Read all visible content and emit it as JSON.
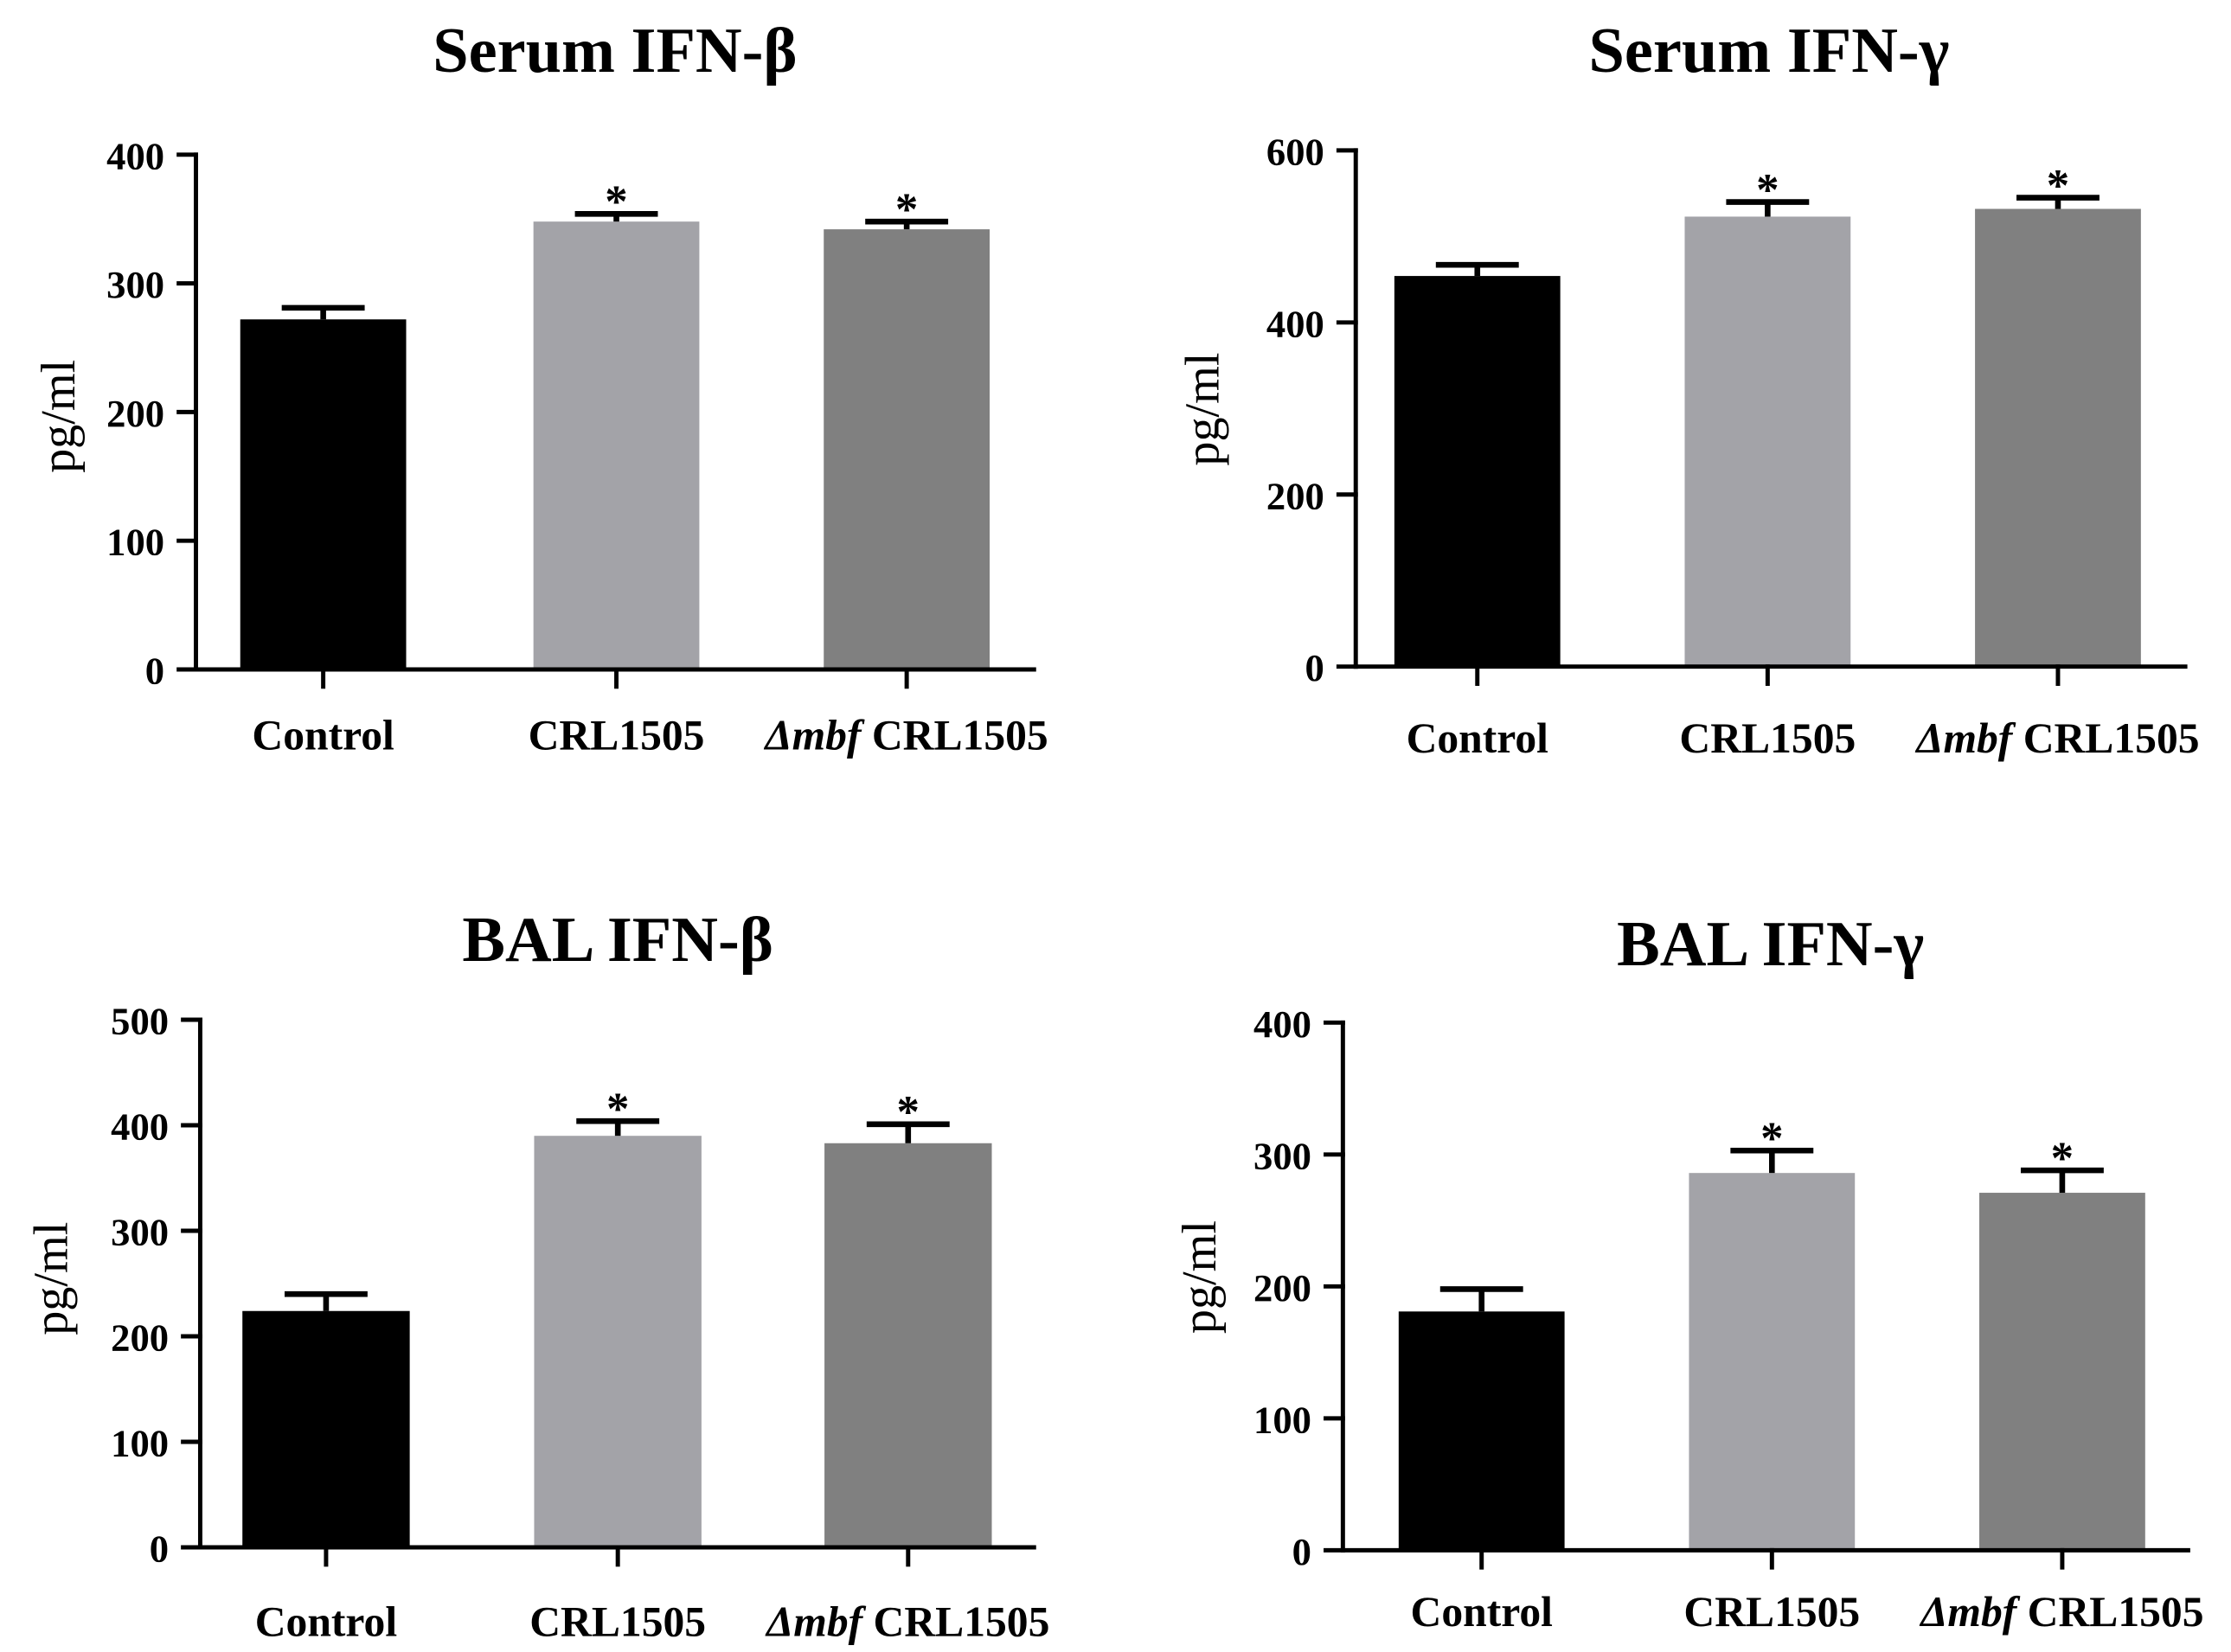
{
  "chart_data": [
    {
      "type": "bar",
      "title": "Serum IFN-β",
      "xlabel": "",
      "ylabel": "pg/ml",
      "ylim": [
        0,
        400
      ],
      "yticks": [
        0,
        100,
        200,
        300,
        400
      ],
      "categories": [
        "Control",
        "CRL1505",
        "Δmbf CRL1505"
      ],
      "values": [
        272,
        348,
        342
      ],
      "errors": [
        9,
        6,
        6
      ],
      "significance": [
        "",
        "*",
        "*"
      ],
      "bar_colors": [
        "#000000",
        "#a3a3a8",
        "#808080"
      ]
    },
    {
      "type": "bar",
      "title": "Serum IFN-γ",
      "xlabel": "",
      "ylabel": "pg/ml",
      "ylim": [
        0,
        600
      ],
      "yticks": [
        0,
        200,
        400,
        600
      ],
      "categories": [
        "Control",
        "CRL1505",
        "Δmbf CRL1505"
      ],
      "values": [
        454,
        523,
        532
      ],
      "errors": [
        13,
        17,
        13
      ],
      "significance": [
        "",
        "*",
        "*"
      ],
      "bar_colors": [
        "#000000",
        "#a3a3a8",
        "#808080"
      ]
    },
    {
      "type": "bar",
      "title": "BAL IFN-β",
      "xlabel": "",
      "ylabel": "pg/ml",
      "ylim": [
        0,
        500
      ],
      "yticks": [
        0,
        100,
        200,
        300,
        400,
        500
      ],
      "categories": [
        "Control",
        "CRL1505",
        "Δmbf CRL1505"
      ],
      "values": [
        224,
        390,
        383
      ],
      "errors": [
        16,
        14,
        18
      ],
      "significance": [
        "",
        "*",
        "*"
      ],
      "bar_colors": [
        "#000000",
        "#a3a3a8",
        "#808080"
      ]
    },
    {
      "type": "bar",
      "title": "BAL IFN-γ",
      "xlabel": "",
      "ylabel": "pg/ml",
      "ylim": [
        0,
        400
      ],
      "yticks": [
        0,
        100,
        200,
        300,
        400
      ],
      "categories": [
        "Control",
        "CRL1505",
        "Δmbf CRL1505"
      ],
      "values": [
        181,
        286,
        271
      ],
      "errors": [
        17,
        17,
        17
      ],
      "significance": [
        "",
        "*",
        "*"
      ],
      "bar_colors": [
        "#000000",
        "#a3a3a8",
        "#808080"
      ]
    }
  ]
}
